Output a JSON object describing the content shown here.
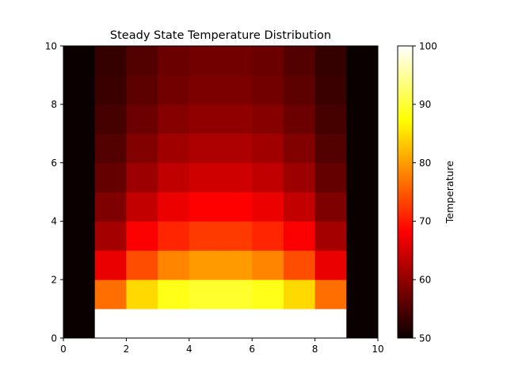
{
  "chart_data": {
    "type": "heatmap",
    "title": "Steady State Temperature Distribution",
    "xlabel": "",
    "ylabel": "",
    "xlim": [
      0,
      10
    ],
    "ylim": [
      0,
      10
    ],
    "x_ticks": [
      0,
      2,
      4,
      6,
      8,
      10
    ],
    "y_ticks": [
      0,
      2,
      4,
      6,
      8,
      10
    ],
    "grid": false,
    "colormap": "hot",
    "colorbar": {
      "label": "Temperature",
      "range": [
        50,
        100
      ],
      "ticks": [
        50,
        60,
        70,
        80,
        90,
        100
      ]
    },
    "rows_bottom_to_top": [
      [
        50,
        100,
        100,
        100,
        100,
        100,
        100,
        100,
        100,
        50
      ],
      [
        50,
        76.5,
        84.5,
        88.5,
        89.6,
        89.6,
        88.5,
        84.5,
        76.5,
        50
      ],
      [
        50,
        66.0,
        74.0,
        78.2,
        79.8,
        79.8,
        78.2,
        74.0,
        66.0,
        50
      ],
      [
        50,
        61.0,
        67.2,
        71.0,
        72.6,
        72.6,
        71.0,
        67.2,
        61.0,
        50
      ],
      [
        50,
        58.3,
        63.2,
        66.2,
        67.6,
        67.6,
        66.2,
        63.2,
        58.3,
        50
      ],
      [
        50,
        56.5,
        60.5,
        63.0,
        64.0,
        64.0,
        63.0,
        60.5,
        56.5,
        50
      ],
      [
        50,
        55.2,
        58.5,
        60.7,
        61.6,
        61.6,
        60.7,
        58.5,
        55.2,
        50
      ],
      [
        50,
        54.2,
        57.0,
        58.8,
        59.6,
        59.6,
        58.8,
        57.0,
        54.2,
        50
      ],
      [
        50,
        53.4,
        55.8,
        57.4,
        58.1,
        58.1,
        57.4,
        55.8,
        53.4,
        50
      ],
      [
        50,
        53.0,
        55.2,
        56.8,
        57.4,
        57.4,
        56.8,
        55.2,
        53.0,
        50
      ]
    ]
  }
}
